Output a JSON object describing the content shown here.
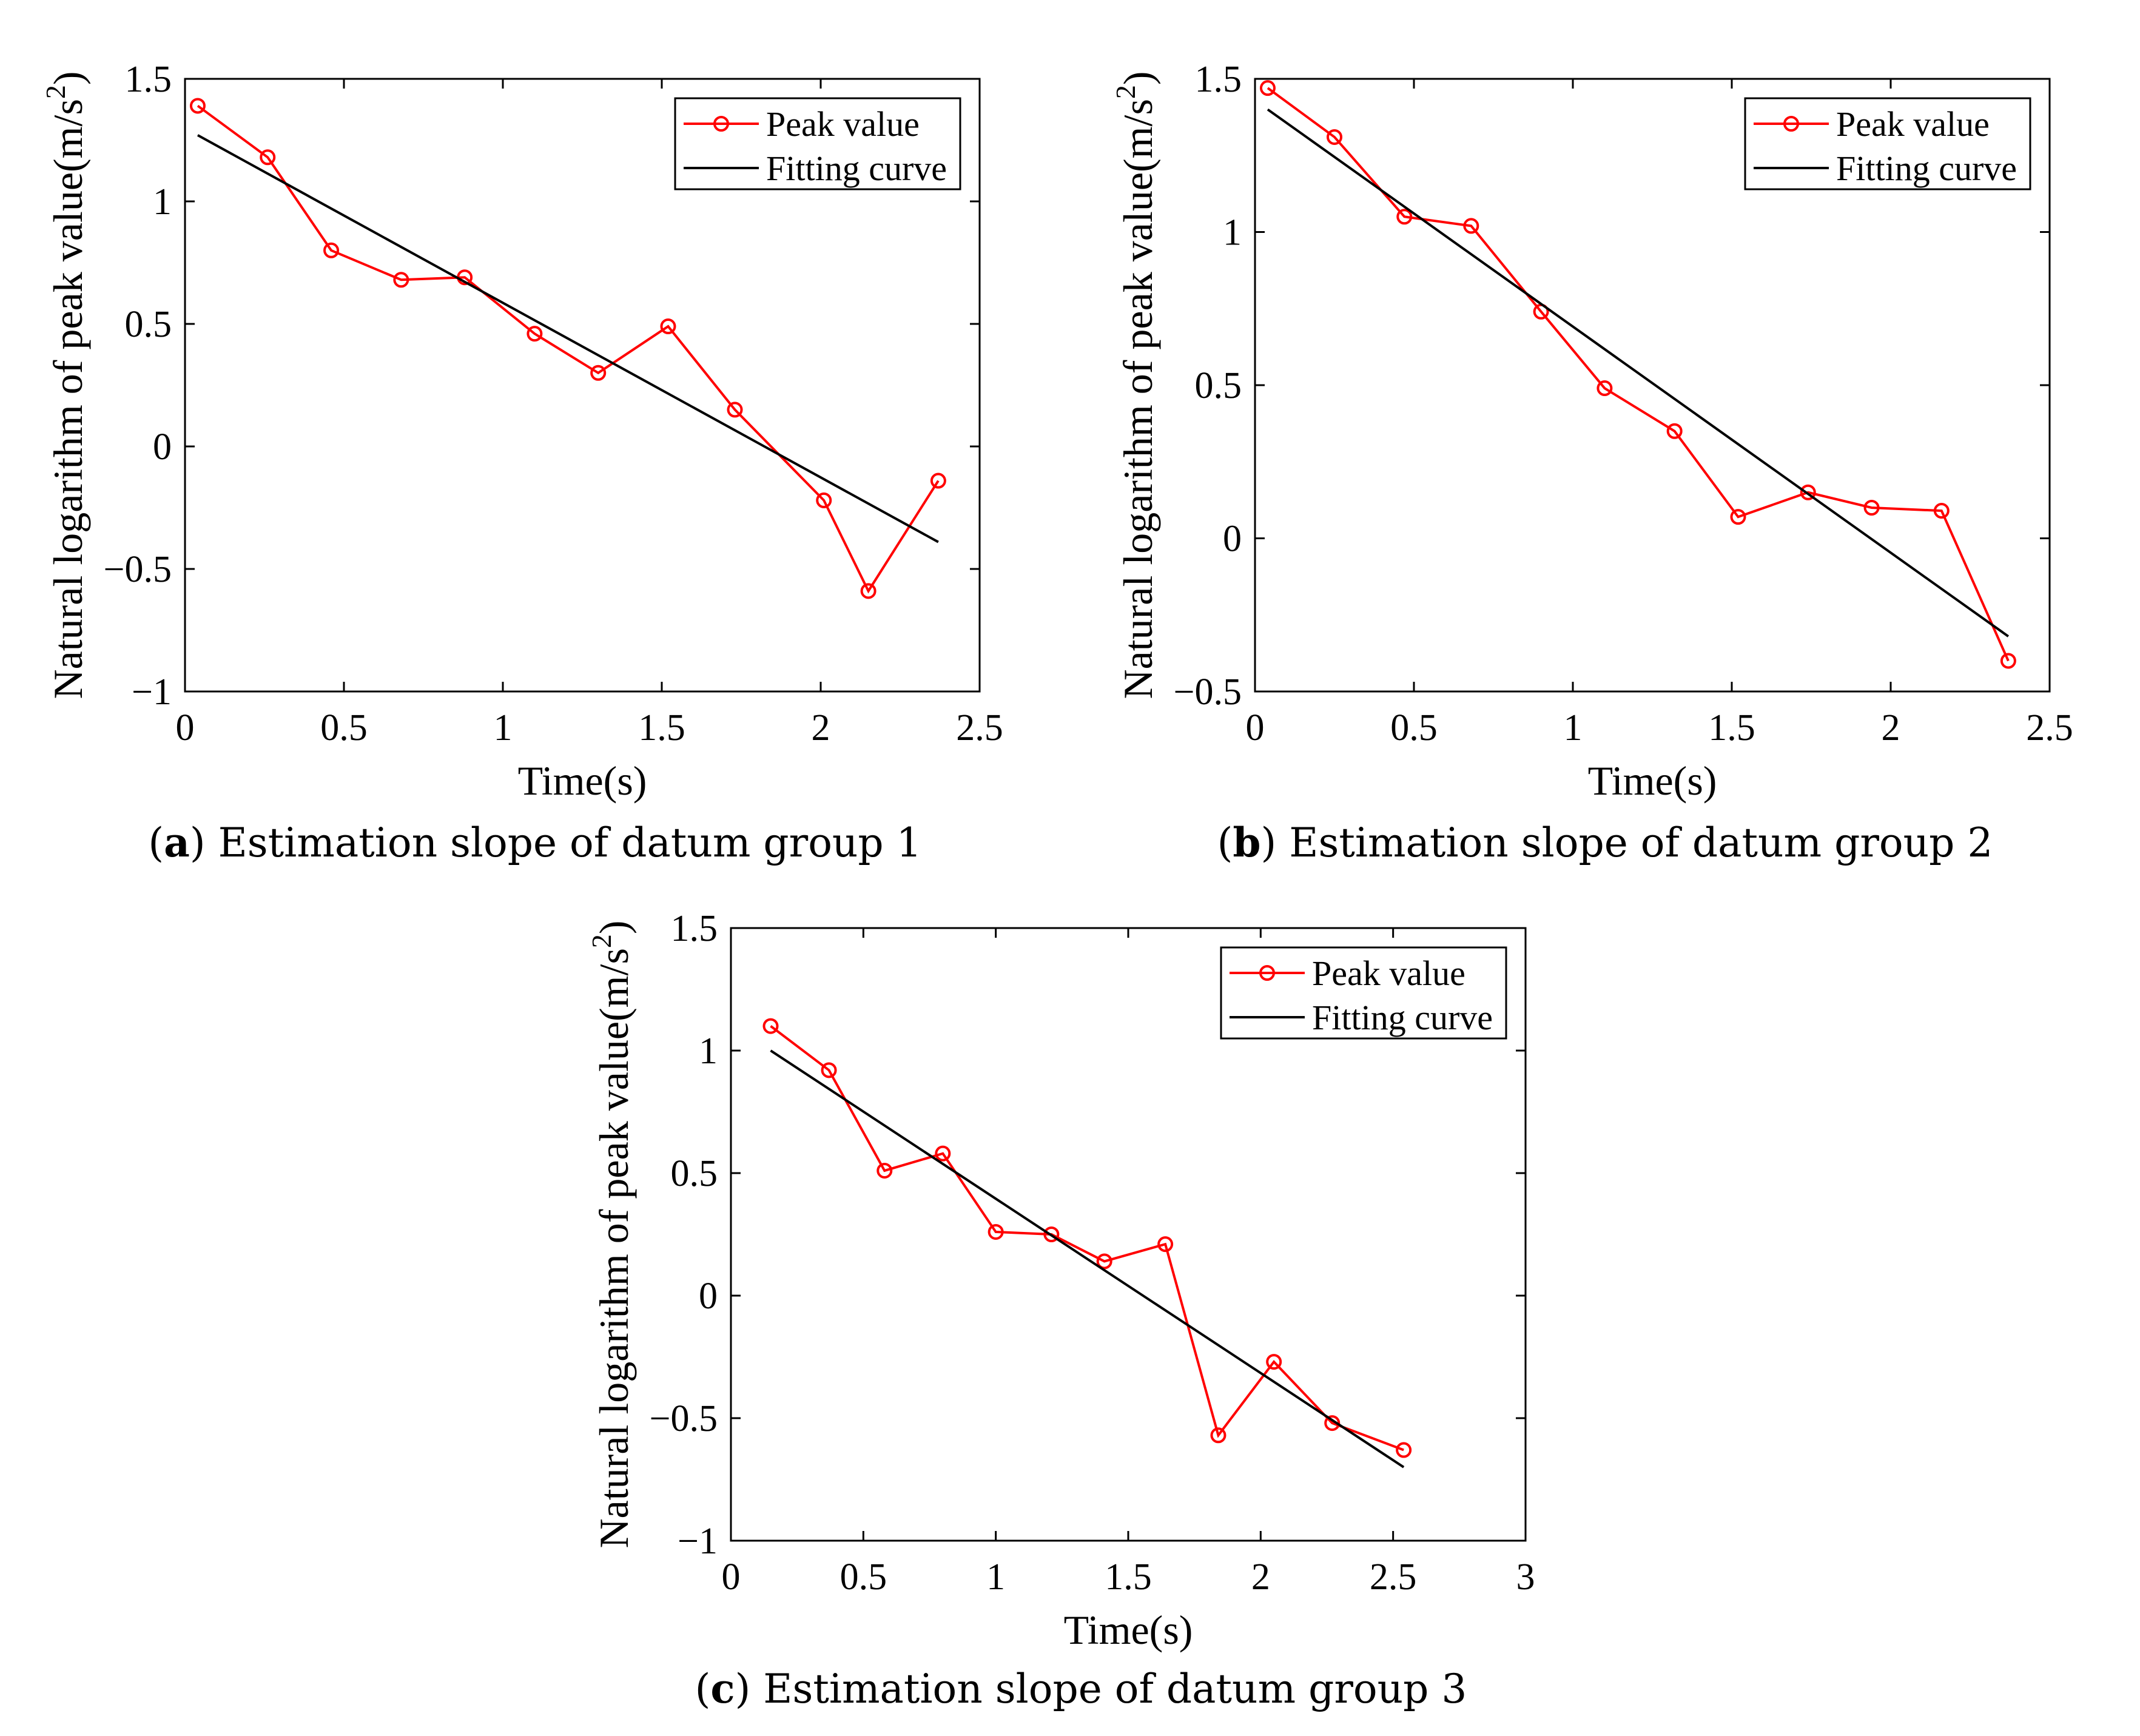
{
  "figure": {
    "panels": [
      {
        "label": "a",
        "caption": "Estimation slope of datum group 1"
      },
      {
        "label": "b",
        "caption": "Estimation slope of datum group 2"
      },
      {
        "label": "c",
        "caption": "Estimation slope of datum group 3"
      }
    ]
  },
  "colors": {
    "peak": "#ff0000",
    "fit": "#000000",
    "axis": "#000000"
  },
  "chart_data": [
    {
      "type": "line",
      "title": "",
      "xlabel": "Time(s)",
      "ylabel": "Natural logarithm of peak value(m/s^2)",
      "ylabel_main": "Natural logarithm of peak value(m/s",
      "ylabel_sup": "2",
      "ylabel_close": ")",
      "xlim": [
        0,
        2.5
      ],
      "ylim": [
        -1,
        1.5
      ],
      "xticks": [
        0,
        0.5,
        1,
        1.5,
        2,
        2.5
      ],
      "xtick_labels": [
        "0",
        "0.5",
        "1",
        "1.5",
        "2",
        "2.5"
      ],
      "yticks": [
        -1,
        -0.5,
        0,
        0.5,
        1,
        1.5
      ],
      "ytick_labels": [
        "−1",
        "−0.5",
        "0",
        "0.5",
        "1",
        "1.5"
      ],
      "legend_position": "top-right",
      "series": [
        {
          "name": "Peak value",
          "style": "line-circle",
          "x": [
            0.04,
            0.26,
            0.46,
            0.68,
            0.88,
            1.1,
            1.3,
            1.52,
            1.73,
            2.01,
            2.15,
            2.37
          ],
          "y": [
            1.39,
            1.18,
            0.8,
            0.68,
            0.69,
            0.46,
            0.3,
            0.49,
            0.15,
            -0.22,
            -0.59,
            -0.14
          ]
        },
        {
          "name": "Fitting curve",
          "style": "line",
          "x": [
            0.04,
            2.37
          ],
          "y": [
            1.27,
            -0.39
          ]
        }
      ]
    },
    {
      "type": "line",
      "title": "",
      "xlabel": "Time(s)",
      "ylabel": "Natural logarithm of peak value(m/s^2)",
      "ylabel_main": "Natural logarithm of peak value(m/s",
      "ylabel_sup": "2",
      "ylabel_close": ")",
      "xlim": [
        0,
        2.5
      ],
      "ylim": [
        -0.5,
        1.5
      ],
      "xticks": [
        0,
        0.5,
        1,
        1.5,
        2,
        2.5
      ],
      "xtick_labels": [
        "0",
        "0.5",
        "1",
        "1.5",
        "2",
        "2.5"
      ],
      "yticks": [
        -0.5,
        0,
        0.5,
        1,
        1.5
      ],
      "ytick_labels": [
        "−0.5",
        "0",
        "0.5",
        "1",
        "1.5"
      ],
      "legend_position": "top-right",
      "series": [
        {
          "name": "Peak value",
          "style": "line-circle",
          "x": [
            0.04,
            0.25,
            0.47,
            0.68,
            0.9,
            1.1,
            1.32,
            1.52,
            1.74,
            1.94,
            2.16,
            2.37
          ],
          "y": [
            1.47,
            1.31,
            1.05,
            1.02,
            0.74,
            0.49,
            0.35,
            0.07,
            0.15,
            0.1,
            0.09,
            -0.4
          ]
        },
        {
          "name": "Fitting curve",
          "style": "line",
          "x": [
            0.04,
            2.37
          ],
          "y": [
            1.4,
            -0.32
          ]
        }
      ]
    },
    {
      "type": "line",
      "title": "",
      "xlabel": "Time(s)",
      "ylabel": "Natural logarithm of peak value(m/s^2)",
      "ylabel_main": "Natural logarithm of peak value(m/s",
      "ylabel_sup": "2",
      "ylabel_close": ")",
      "xlim": [
        0,
        3
      ],
      "ylim": [
        -1,
        1.5
      ],
      "xticks": [
        0,
        0.5,
        1,
        1.5,
        2,
        2.5,
        3
      ],
      "xtick_labels": [
        "0",
        "0.5",
        "1",
        "1.5",
        "2",
        "2.5",
        "3"
      ],
      "yticks": [
        -1,
        -0.5,
        0,
        0.5,
        1,
        1.5
      ],
      "ytick_labels": [
        "−1",
        "−0.5",
        "0",
        "0.5",
        "1",
        "1.5"
      ],
      "legend_position": "top-right",
      "series": [
        {
          "name": "Peak value",
          "style": "line-circle",
          "x": [
            0.15,
            0.37,
            0.58,
            0.8,
            1.0,
            1.21,
            1.41,
            1.64,
            1.84,
            2.05,
            2.27,
            2.54
          ],
          "y": [
            1.1,
            0.92,
            0.51,
            0.58,
            0.26,
            0.25,
            0.14,
            0.21,
            -0.57,
            -0.27,
            -0.52,
            -0.63
          ]
        },
        {
          "name": "Fitting curve",
          "style": "line",
          "x": [
            0.15,
            2.54
          ],
          "y": [
            1.0,
            -0.7
          ]
        }
      ]
    }
  ]
}
